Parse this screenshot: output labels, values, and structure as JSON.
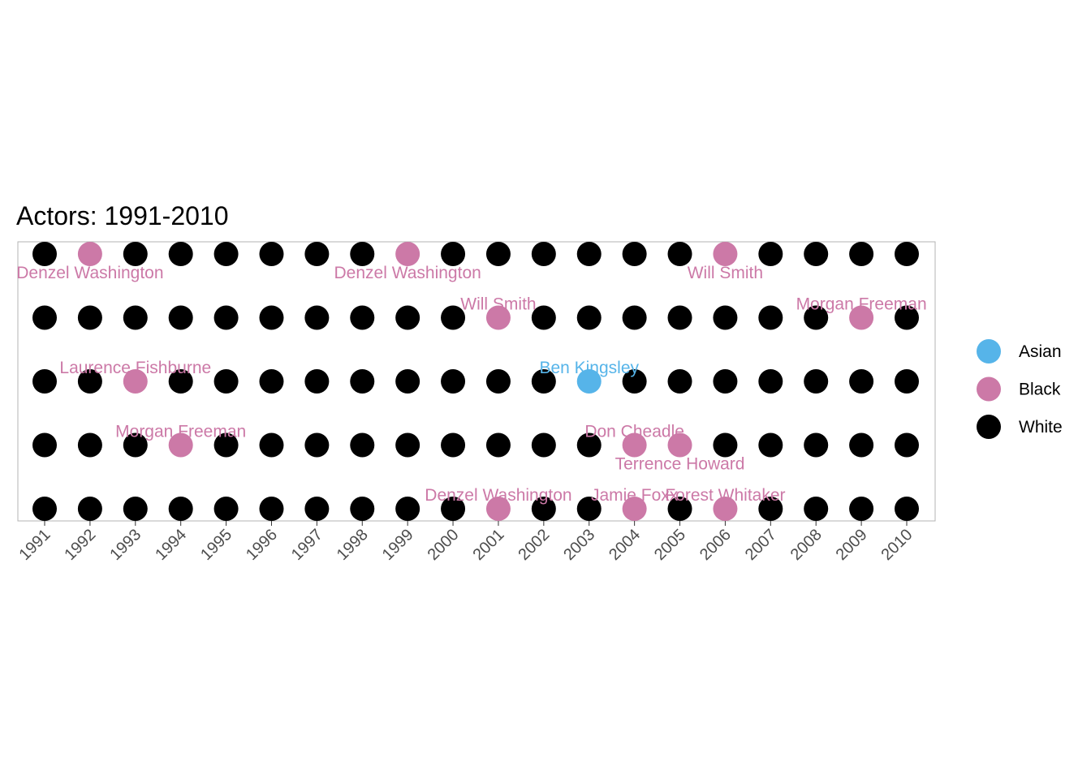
{
  "chart_data": {
    "type": "scatter",
    "title": "Actors: 1991-2010",
    "xlabel": "",
    "ylabel": "",
    "x_ticks": [
      "1991",
      "1992",
      "1993",
      "1994",
      "1995",
      "1996",
      "1997",
      "1998",
      "1999",
      "2000",
      "2001",
      "2002",
      "2003",
      "2004",
      "2005",
      "2006",
      "2007",
      "2008",
      "2009",
      "2010"
    ],
    "rows": 5,
    "grid": false,
    "legend_position": "right",
    "colors": {
      "Asian": "#56B4E9",
      "Black": "#CC79A7",
      "White": "#000000"
    },
    "legend": [
      {
        "label": "Asian",
        "key": "Asian"
      },
      {
        "label": "Black",
        "key": "Black"
      },
      {
        "label": "White",
        "key": "White"
      }
    ],
    "highlighted": [
      {
        "year": "1992",
        "row": 5,
        "group": "Black",
        "label": "Denzel Washington",
        "label_side": "below"
      },
      {
        "year": "1999",
        "row": 5,
        "group": "Black",
        "label": "Denzel Washington",
        "label_side": "below"
      },
      {
        "year": "2006",
        "row": 5,
        "group": "Black",
        "label": "Will Smith",
        "label_side": "below"
      },
      {
        "year": "2001",
        "row": 4,
        "group": "Black",
        "label": "Will Smith",
        "label_side": "above"
      },
      {
        "year": "2009",
        "row": 4,
        "group": "Black",
        "label": "Morgan Freeman",
        "label_side": "above"
      },
      {
        "year": "1993",
        "row": 3,
        "group": "Black",
        "label": "Laurence Fishburne",
        "label_side": "above"
      },
      {
        "year": "2003",
        "row": 3,
        "group": "Asian",
        "label": "Ben Kingsley",
        "label_side": "above"
      },
      {
        "year": "1994",
        "row": 2,
        "group": "Black",
        "label": "Morgan Freeman",
        "label_side": "above"
      },
      {
        "year": "2004",
        "row": 2,
        "group": "Black",
        "label": "Don Cheadle",
        "label_side": "above"
      },
      {
        "year": "2005",
        "row": 2,
        "group": "Black",
        "label": "Terrence Howard",
        "label_side": "below"
      },
      {
        "year": "2001",
        "row": 1,
        "group": "Black",
        "label": "Denzel Washington",
        "label_side": "above"
      },
      {
        "year": "2004",
        "row": 1,
        "group": "Black",
        "label": "Jamie Foxx",
        "label_side": "above"
      },
      {
        "year": "2006",
        "row": 1,
        "group": "Black",
        "label": "Forest Whitaker",
        "label_side": "above"
      }
    ],
    "default_group": "White"
  }
}
